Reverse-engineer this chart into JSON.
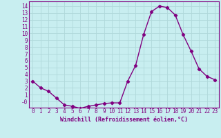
{
  "x": [
    0,
    1,
    2,
    3,
    4,
    5,
    6,
    7,
    8,
    9,
    10,
    11,
    12,
    13,
    14,
    15,
    16,
    17,
    18,
    19,
    20,
    21,
    22,
    23
  ],
  "y": [
    3,
    2,
    1.5,
    0.5,
    -0.5,
    -0.7,
    -1,
    -0.7,
    -0.5,
    -0.3,
    -0.2,
    -0.2,
    3,
    5.3,
    9.8,
    13.2,
    14.0,
    13.8,
    12.7,
    9.8,
    7.4,
    4.8,
    3.7,
    3.2
  ],
  "line_color": "#800080",
  "marker": "D",
  "marker_size": 2.2,
  "linewidth": 1.0,
  "bg_color": "#c8eef0",
  "grid_color": "#b0d8da",
  "xlabel": "Windchill (Refroidissement éolien,°C)",
  "xlabel_color": "#800080",
  "ytick_labels": [
    "-0",
    "1",
    "2",
    "3",
    "4",
    "5",
    "6",
    "7",
    "8",
    "9",
    "10",
    "11",
    "12",
    "13",
    "14"
  ],
  "ylim": [
    -0.9,
    14.7
  ],
  "xlim": [
    -0.5,
    23.5
  ],
  "yticks": [
    0,
    1,
    2,
    3,
    4,
    5,
    6,
    7,
    8,
    9,
    10,
    11,
    12,
    13,
    14
  ],
  "xtick_labels": [
    "0",
    "1",
    "2",
    "3",
    "4",
    "5",
    "6",
    "7",
    "8",
    "9",
    "10",
    "11",
    "12",
    "13",
    "14",
    "15",
    "16",
    "17",
    "18",
    "19",
    "20",
    "21",
    "22",
    "23"
  ],
  "tick_fontsize": 5.5,
  "xlabel_fontsize": 6.0
}
